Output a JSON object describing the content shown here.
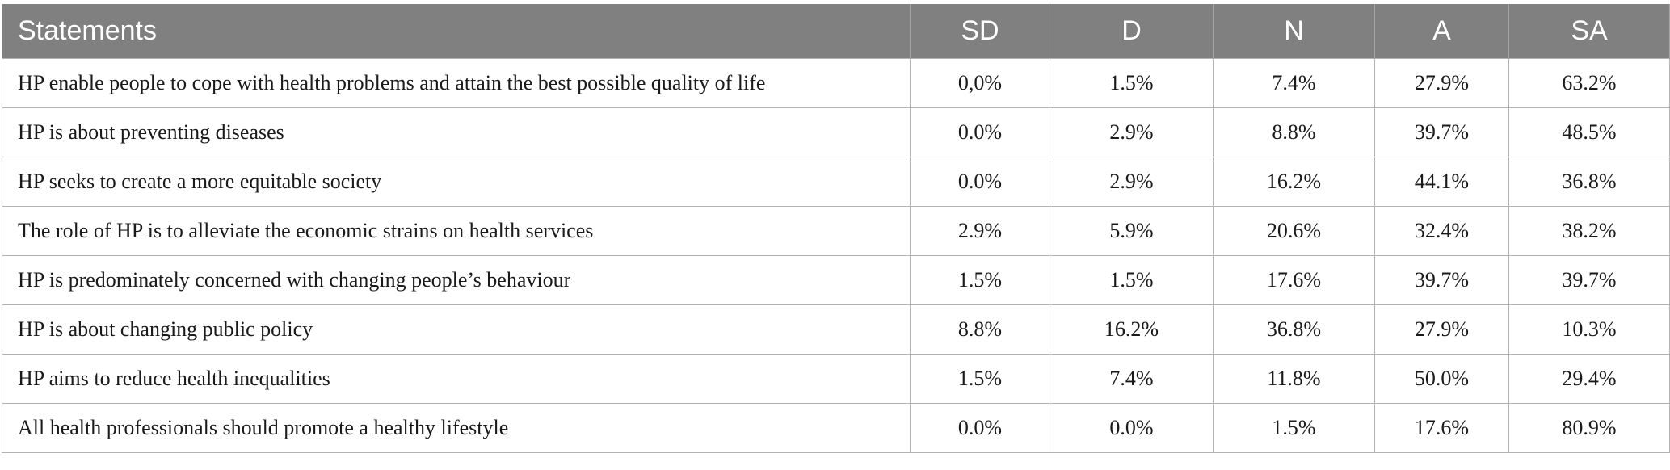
{
  "table": {
    "headers": [
      "Statements",
      "SD",
      "D",
      "N",
      "A",
      "SA"
    ],
    "rows": [
      [
        "HP enable people to cope with health problems and attain the best possible quality of life",
        "0,0%",
        "1.5%",
        "7.4%",
        "27.9%",
        "63.2%"
      ],
      [
        "HP is about preventing diseases",
        "0.0%",
        "2.9%",
        "8.8%",
        "39.7%",
        "48.5%"
      ],
      [
        "HP seeks to create a more equitable society",
        "0.0%",
        "2.9%",
        "16.2%",
        "44.1%",
        "36.8%"
      ],
      [
        "The role of HP is to alleviate the economic strains on health services",
        "2.9%",
        "5.9%",
        "20.6%",
        "32.4%",
        "38.2%"
      ],
      [
        "HP is predominately concerned with changing people’s behaviour",
        "1.5%",
        "1.5%",
        "17.6%",
        "39.7%",
        "39.7%"
      ],
      [
        "HP is about changing public policy",
        "8.8%",
        "16.2%",
        "36.8%",
        "27.9%",
        "10.3%"
      ],
      [
        "HP aims to reduce health inequalities",
        "1.5%",
        "7.4%",
        "11.8%",
        "50.0%",
        "29.4%"
      ],
      [
        "All health professionals should promote a healthy lifestyle",
        "0.0%",
        "0.0%",
        "1.5%",
        "17.6%",
        "80.9%"
      ]
    ]
  },
  "colors": {
    "header_bg": "#808080",
    "header_text": "#ffffff",
    "grid": "#b3b3b3",
    "body_text": "#1a1a1a"
  }
}
